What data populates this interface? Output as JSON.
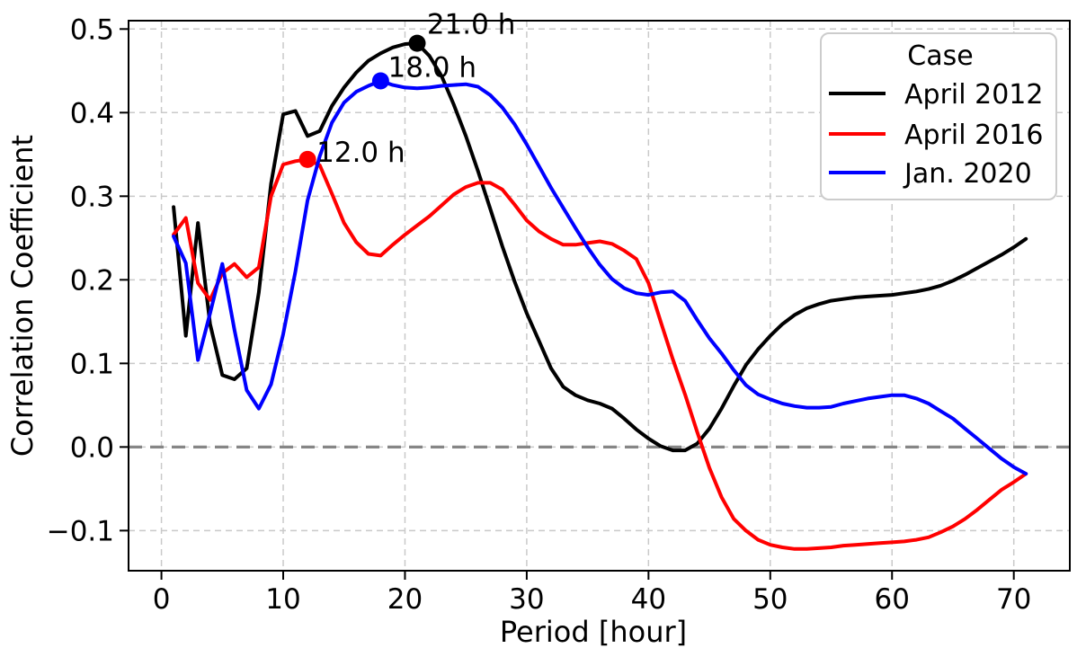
{
  "chart_data": {
    "type": "line",
    "title": "",
    "xlabel": "Period [hour]",
    "ylabel": "Correlation Coefficient",
    "xlim": [
      -2.7,
      74.6
    ],
    "ylim": [
      -0.148,
      0.51
    ],
    "grid": true,
    "zero_line": {
      "y": 0.0,
      "color": "#868686"
    },
    "grid_color": "#c9c9c9",
    "xticks": [
      0,
      10,
      20,
      30,
      40,
      50,
      60,
      70
    ],
    "yticks": [
      -0.1,
      0.0,
      0.1,
      0.2,
      0.3,
      0.4,
      0.5
    ],
    "ytick_labels": [
      "−0.1",
      "0.0",
      "0.1",
      "0.2",
      "0.3",
      "0.4",
      "0.5"
    ],
    "xtick_labels": [
      "0",
      "10",
      "20",
      "30",
      "40",
      "50",
      "60",
      "70"
    ],
    "x": [
      1,
      2,
      3,
      4,
      5,
      6,
      7,
      8,
      9,
      10,
      11,
      12,
      13,
      14,
      15,
      16,
      17,
      18,
      19,
      20,
      21,
      22,
      23,
      24,
      25,
      26,
      27,
      28,
      29,
      30,
      31,
      32,
      33,
      34,
      35,
      36,
      37,
      38,
      39,
      40,
      41,
      42,
      43,
      44,
      45,
      46,
      47,
      48,
      49,
      50,
      51,
      52,
      53,
      54,
      55,
      56,
      57,
      58,
      59,
      60,
      61,
      62,
      63,
      64,
      65,
      66,
      67,
      68,
      69,
      70,
      71
    ],
    "series": [
      {
        "name": "April 2012",
        "color": "#000000",
        "values": [
          0.287,
          0.133,
          0.268,
          0.147,
          0.086,
          0.081,
          0.094,
          0.185,
          0.315,
          0.398,
          0.402,
          0.372,
          0.378,
          0.408,
          0.43,
          0.448,
          0.462,
          0.471,
          0.478,
          0.482,
          0.483,
          0.468,
          0.444,
          0.41,
          0.372,
          0.33,
          0.285,
          0.24,
          0.198,
          0.16,
          0.127,
          0.094,
          0.072,
          0.062,
          0.056,
          0.052,
          0.046,
          0.034,
          0.021,
          0.01,
          0.001,
          -0.004,
          -0.004,
          0.004,
          0.022,
          0.046,
          0.073,
          0.098,
          0.117,
          0.133,
          0.147,
          0.158,
          0.166,
          0.171,
          0.175,
          0.177,
          0.179,
          0.18,
          0.181,
          0.182,
          0.184,
          0.186,
          0.189,
          0.193,
          0.199,
          0.206,
          0.214,
          0.222,
          0.23,
          0.239,
          0.249
        ]
      },
      {
        "name": "April 2016",
        "color": "#ff0000",
        "values": [
          0.254,
          0.274,
          0.196,
          0.176,
          0.208,
          0.219,
          0.203,
          0.215,
          0.3,
          0.338,
          0.342,
          0.344,
          0.337,
          0.303,
          0.268,
          0.245,
          0.231,
          0.229,
          0.242,
          0.254,
          0.265,
          0.276,
          0.289,
          0.302,
          0.311,
          0.316,
          0.316,
          0.308,
          0.29,
          0.271,
          0.258,
          0.249,
          0.242,
          0.242,
          0.244,
          0.246,
          0.243,
          0.235,
          0.225,
          0.196,
          0.15,
          0.105,
          0.063,
          0.018,
          -0.025,
          -0.06,
          -0.086,
          -0.1,
          -0.111,
          -0.117,
          -0.12,
          -0.122,
          -0.122,
          -0.121,
          -0.12,
          -0.118,
          -0.117,
          -0.116,
          -0.115,
          -0.114,
          -0.113,
          -0.111,
          -0.108,
          -0.102,
          -0.095,
          -0.086,
          -0.075,
          -0.063,
          -0.051,
          -0.042,
          -0.032
        ]
      },
      {
        "name": "Jan. 2020",
        "color": "#0000ff",
        "values": [
          0.252,
          0.22,
          0.104,
          0.16,
          0.219,
          0.14,
          0.068,
          0.046,
          0.075,
          0.135,
          0.21,
          0.295,
          0.348,
          0.388,
          0.412,
          0.425,
          0.432,
          0.438,
          0.433,
          0.43,
          0.429,
          0.43,
          0.432,
          0.433,
          0.434,
          0.431,
          0.421,
          0.406,
          0.386,
          0.362,
          0.336,
          0.31,
          0.286,
          0.262,
          0.239,
          0.218,
          0.201,
          0.19,
          0.184,
          0.182,
          0.185,
          0.186,
          0.175,
          0.152,
          0.13,
          0.112,
          0.092,
          0.074,
          0.063,
          0.057,
          0.052,
          0.049,
          0.047,
          0.047,
          0.048,
          0.052,
          0.055,
          0.058,
          0.06,
          0.062,
          0.062,
          0.058,
          0.052,
          0.043,
          0.034,
          0.022,
          0.01,
          -0.002,
          -0.014,
          -0.024,
          -0.032
        ]
      }
    ],
    "annotations": [
      {
        "label": "21.0 h",
        "series": "April 2012",
        "color": "#000000",
        "point": {
          "x": 21.0,
          "y": 0.483
        },
        "label_pos": {
          "x": 21.8,
          "y": 0.4946
        }
      },
      {
        "label": "18.0 h",
        "series": "Jan. 2020",
        "color": "#0000ff",
        "point": {
          "x": 18.0,
          "y": 0.438
        },
        "label_pos": {
          "x": 18.6,
          "y": 0.443
        }
      },
      {
        "label": "12.0 h",
        "series": "April 2016",
        "color": "#ff0000",
        "point": {
          "x": 12.0,
          "y": 0.344
        },
        "label_pos": {
          "x": 12.74,
          "y": 0.341
        }
      }
    ],
    "legend": {
      "title": "Case",
      "position": "upper right",
      "entries": [
        "April 2012",
        "April 2016",
        "Jan. 2020"
      ]
    }
  }
}
